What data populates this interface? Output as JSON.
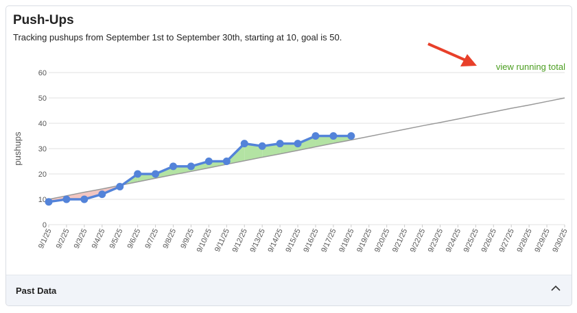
{
  "card": {
    "title": "Push-Ups",
    "description": "Tracking pushups from September 1st to September 30th, starting at 10, goal is 50.",
    "link": "view running total",
    "footer": "Past Data"
  },
  "chart_data": {
    "type": "line",
    "y_label": "pushups",
    "categories": [
      "9/1/25",
      "9/2/25",
      "9/3/25",
      "9/4/25",
      "9/5/25",
      "9/6/25",
      "9/7/25",
      "9/8/25",
      "9/9/25",
      "9/10/25",
      "9/11/25",
      "9/12/25",
      "9/13/25",
      "9/14/25",
      "9/15/25",
      "9/16/25",
      "9/17/25",
      "9/18/25",
      "9/19/25",
      "9/20/25",
      "9/21/25",
      "9/22/25",
      "9/23/25",
      "9/24/25",
      "9/25/25",
      "9/26/25",
      "9/27/25",
      "9/28/25",
      "9/29/25",
      "9/30/25"
    ],
    "series": [
      {
        "color": "#5383d9",
        "values": [
          9,
          10,
          10,
          12,
          15,
          20,
          20,
          23,
          23,
          25,
          25,
          32,
          31,
          32,
          32,
          35,
          35,
          35,
          null,
          null,
          null,
          null,
          null,
          null,
          null,
          null,
          null,
          null,
          null,
          null
        ]
      },
      {
        "color": "#999999",
        "values": [
          10,
          11.4,
          12.8,
          14.1,
          15.5,
          16.9,
          18.3,
          19.7,
          21,
          22.4,
          23.8,
          25.2,
          26.6,
          27.9,
          29.3,
          30.7,
          32.1,
          33.4,
          34.8,
          36.2,
          37.6,
          39,
          40.3,
          41.7,
          43.1,
          44.5,
          45.9,
          47.2,
          48.6,
          50
        ]
      }
    ],
    "above_color": "#b3e3a3",
    "below_color": "#f2c6c2",
    "ylim": [
      0,
      60
    ],
    "yticks": [
      0,
      10,
      20,
      30,
      40,
      50,
      60
    ],
    "grid": true
  }
}
